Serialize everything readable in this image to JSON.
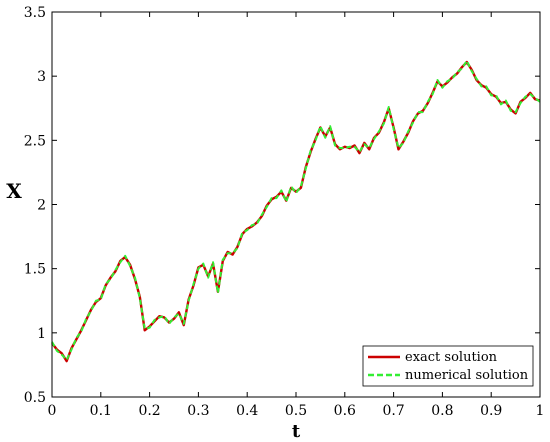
{
  "chart_data": {
    "type": "line",
    "title": "",
    "xlabel": "t",
    "ylabel": "X",
    "xlim": [
      0,
      1
    ],
    "ylim": [
      0.5,
      3.5
    ],
    "x_ticks": [
      0,
      0.1,
      0.2,
      0.3,
      0.4,
      0.5,
      0.6,
      0.7,
      0.8,
      0.9,
      1
    ],
    "x_tick_labels": [
      "0",
      "0.1",
      "0.2",
      "0.3",
      "0.4",
      "0.5",
      "0.6",
      "0.7",
      "0.8",
      "0.9",
      "1"
    ],
    "y_ticks": [
      0.5,
      1,
      1.5,
      2,
      2.5,
      3,
      3.5
    ],
    "y_tick_labels": [
      "0.5",
      "1",
      "1.5",
      "2",
      "2.5",
      "3",
      "3.5"
    ],
    "grid": false,
    "legend_position": "bottom-right",
    "x": [
      0,
      0.01,
      0.02,
      0.03,
      0.04,
      0.05,
      0.06,
      0.07,
      0.08,
      0.09,
      0.1,
      0.11,
      0.12,
      0.13,
      0.14,
      0.15,
      0.16,
      0.17,
      0.18,
      0.19,
      0.2,
      0.21,
      0.22,
      0.23,
      0.24,
      0.25,
      0.26,
      0.27,
      0.28,
      0.29,
      0.3,
      0.31,
      0.32,
      0.33,
      0.34,
      0.35,
      0.36,
      0.37,
      0.38,
      0.39,
      0.4,
      0.41,
      0.42,
      0.43,
      0.44,
      0.45,
      0.46,
      0.47,
      0.48,
      0.49,
      0.5,
      0.51,
      0.52,
      0.53,
      0.54,
      0.55,
      0.56,
      0.57,
      0.58,
      0.59,
      0.6,
      0.61,
      0.62,
      0.63,
      0.64,
      0.65,
      0.66,
      0.67,
      0.68,
      0.69,
      0.7,
      0.71,
      0.72,
      0.73,
      0.74,
      0.75,
      0.76,
      0.77,
      0.78,
      0.79,
      0.8,
      0.81,
      0.82,
      0.83,
      0.84,
      0.85,
      0.86,
      0.87,
      0.88,
      0.89,
      0.9,
      0.91,
      0.92,
      0.93,
      0.94,
      0.95,
      0.96,
      0.97,
      0.98,
      0.99,
      1
    ],
    "series": [
      {
        "name": "exact solution",
        "color": "#cc0000",
        "style": "solid",
        "values": [
          0.92,
          0.87,
          0.84,
          0.78,
          0.88,
          0.95,
          1.02,
          1.1,
          1.18,
          1.24,
          1.27,
          1.37,
          1.43,
          1.48,
          1.56,
          1.59,
          1.53,
          1.42,
          1.28,
          1.02,
          1.05,
          1.09,
          1.13,
          1.12,
          1.08,
          1.11,
          1.16,
          1.06,
          1.26,
          1.37,
          1.51,
          1.53,
          1.44,
          1.54,
          1.32,
          1.56,
          1.63,
          1.61,
          1.67,
          1.77,
          1.81,
          1.83,
          1.86,
          1.91,
          1.99,
          2.04,
          2.06,
          2.1,
          2.03,
          2.13,
          2.1,
          2.13,
          2.29,
          2.41,
          2.51,
          2.6,
          2.53,
          2.6,
          2.47,
          2.43,
          2.45,
          2.44,
          2.46,
          2.4,
          2.48,
          2.43,
          2.52,
          2.56,
          2.64,
          2.75,
          2.6,
          2.43,
          2.49,
          2.56,
          2.65,
          2.71,
          2.73,
          2.79,
          2.87,
          2.96,
          2.92,
          2.95,
          2.99,
          3.02,
          3.07,
          3.11,
          3.05,
          2.97,
          2.93,
          2.91,
          2.86,
          2.84,
          2.79,
          2.8,
          2.74,
          2.71,
          2.8,
          2.83,
          2.87,
          2.82,
          2.81
        ]
      },
      {
        "name": "numerical solution",
        "color": "#33ee33",
        "style": "dashed",
        "values": [
          0.93,
          0.86,
          0.83,
          0.79,
          0.87,
          0.96,
          1.01,
          1.11,
          1.17,
          1.25,
          1.26,
          1.38,
          1.42,
          1.49,
          1.55,
          1.6,
          1.52,
          1.43,
          1.27,
          1.03,
          1.04,
          1.1,
          1.12,
          1.13,
          1.07,
          1.12,
          1.15,
          1.07,
          1.25,
          1.38,
          1.5,
          1.54,
          1.43,
          1.55,
          1.31,
          1.57,
          1.62,
          1.62,
          1.66,
          1.78,
          1.8,
          1.84,
          1.85,
          1.92,
          1.98,
          2.05,
          2.05,
          2.11,
          2.02,
          2.14,
          2.09,
          2.14,
          2.28,
          2.42,
          2.5,
          2.61,
          2.52,
          2.61,
          2.46,
          2.44,
          2.44,
          2.45,
          2.45,
          2.41,
          2.47,
          2.44,
          2.51,
          2.57,
          2.63,
          2.76,
          2.59,
          2.44,
          2.48,
          2.57,
          2.64,
          2.72,
          2.72,
          2.8,
          2.86,
          2.97,
          2.91,
          2.96,
          2.98,
          3.03,
          3.06,
          3.12,
          3.04,
          2.98,
          2.92,
          2.92,
          2.85,
          2.85,
          2.78,
          2.81,
          2.73,
          2.72,
          2.79,
          2.84,
          2.86,
          2.83,
          2.8
        ]
      }
    ]
  }
}
